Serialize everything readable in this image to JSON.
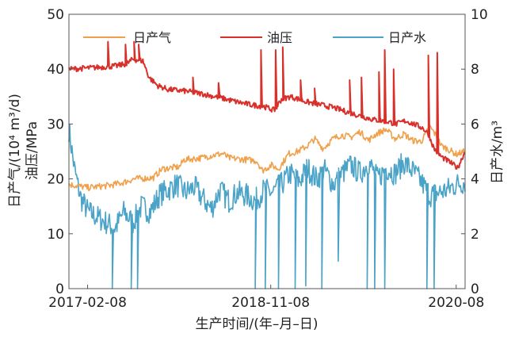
{
  "chart_data": {
    "type": "line",
    "xlabel": "生产时间/(年–月–日)",
    "x_ticks": [
      "2017-02-08",
      "2018-11-08",
      "2020-08"
    ],
    "ylabel_left": "日产气/(10⁴ m³/d)",
    "ylabel_left_line2": "油压/MPa",
    "ylabel_right": "日产水/m³",
    "ylim_left": [
      0,
      50
    ],
    "ylim_right": [
      0,
      10
    ],
    "yticks_left": [
      "0",
      "10",
      "20",
      "30",
      "40",
      "50"
    ],
    "yticks_right": [
      "0",
      "2",
      "4",
      "6",
      "8",
      "10"
    ],
    "xlim": [
      "2016-12-05",
      "2020-09-15"
    ],
    "legend_position": "top",
    "series": [
      {
        "name": "日产气",
        "axis": "left",
        "color": "#F0A04B",
        "points": [
          [
            "2016-12-05",
            19.0
          ],
          [
            "2017-02-08",
            18.4
          ],
          [
            "2017-04-25",
            18.8
          ],
          [
            "2017-06-10",
            19.3
          ],
          [
            "2017-07-20",
            20.0
          ],
          [
            "2017-09-25",
            20.2
          ],
          [
            "2017-10-25",
            21.8
          ],
          [
            "2017-12-25",
            22.2
          ],
          [
            "2018-01-10",
            23.5
          ],
          [
            "2018-03-10",
            23.8
          ],
          [
            "2018-04-10",
            24.2
          ],
          [
            "2018-05-25",
            24.6
          ],
          [
            "2018-06-15",
            23.8
          ],
          [
            "2018-09-20",
            23.3
          ],
          [
            "2018-10-10",
            21.5
          ],
          [
            "2018-11-10",
            22.5
          ],
          [
            "2018-12-05",
            21.8
          ],
          [
            "2019-01-10",
            24.6
          ],
          [
            "2019-02-10",
            25.0
          ],
          [
            "2019-03-15",
            26.0
          ],
          [
            "2019-04-10",
            27.3
          ],
          [
            "2019-05-10",
            25.5
          ],
          [
            "2019-06-10",
            27.2
          ],
          [
            "2019-07-10",
            28.0
          ],
          [
            "2019-08-15",
            27.6
          ],
          [
            "2019-09-15",
            28.6
          ],
          [
            "2019-10-15",
            27.0
          ],
          [
            "2019-11-10",
            28.2
          ],
          [
            "2019-12-15",
            29.0
          ],
          [
            "2020-01-15",
            27.3
          ],
          [
            "2020-02-15",
            28.2
          ],
          [
            "2020-03-15",
            27.0
          ],
          [
            "2020-04-15",
            26.8
          ],
          [
            "2020-05-15",
            29.5
          ],
          [
            "2020-06-05",
            28.0
          ],
          [
            "2020-06-25",
            26.0
          ],
          [
            "2020-07-15",
            25.5
          ],
          [
            "2020-08-15",
            24.5
          ],
          [
            "2020-09-15",
            25.0
          ]
        ]
      },
      {
        "name": "油压",
        "axis": "left",
        "color": "#D8312C",
        "points": [
          [
            "2016-12-05",
            40.0
          ],
          [
            "2017-03-10",
            40.3
          ],
          [
            "2017-05-20",
            40.6
          ],
          [
            "2017-06-25",
            41.0
          ],
          [
            "2017-07-15",
            41.8
          ],
          [
            "2017-08-20",
            41.5
          ],
          [
            "2017-09-10",
            38.5
          ],
          [
            "2017-10-10",
            37.0
          ],
          [
            "2017-11-15",
            36.3
          ],
          [
            "2018-01-15",
            36.0
          ],
          [
            "2018-03-15",
            35.5
          ],
          [
            "2018-05-15",
            34.8
          ],
          [
            "2018-07-15",
            34.0
          ],
          [
            "2018-09-01",
            33.5
          ],
          [
            "2018-10-15",
            33.2
          ],
          [
            "2018-11-20",
            32.5
          ],
          [
            "2018-12-15",
            34.5
          ],
          [
            "2019-01-15",
            35.0
          ],
          [
            "2019-02-15",
            34.5
          ],
          [
            "2019-03-15",
            34.0
          ],
          [
            "2019-05-01",
            33.5
          ],
          [
            "2019-06-15",
            33.0
          ],
          [
            "2019-08-01",
            32.2
          ],
          [
            "2019-09-15",
            31.5
          ],
          [
            "2019-11-01",
            30.8
          ],
          [
            "2019-12-15",
            30.5
          ],
          [
            "2020-01-20",
            30.0
          ],
          [
            "2020-02-20",
            30.6
          ],
          [
            "2020-03-20",
            30.0
          ],
          [
            "2020-04-20",
            29.3
          ],
          [
            "2020-05-10",
            28.2
          ],
          [
            "2020-05-30",
            25.5
          ],
          [
            "2020-06-25",
            24.0
          ],
          [
            "2020-07-25",
            23.0
          ],
          [
            "2020-08-20",
            22.0
          ],
          [
            "2020-09-15",
            25.0
          ]
        ],
        "spikes": [
          [
            "2017-04-20",
            45
          ],
          [
            "2017-06-20",
            44.5
          ],
          [
            "2017-07-20",
            45
          ],
          [
            "2017-08-05",
            44.5
          ],
          [
            "2018-02-10",
            38.5
          ],
          [
            "2018-05-10",
            37.5
          ],
          [
            "2018-10-05",
            43.5
          ],
          [
            "2018-11-25",
            43.5
          ],
          [
            "2018-12-20",
            44.0
          ],
          [
            "2019-02-20",
            38.0
          ],
          [
            "2019-04-10",
            36.5
          ],
          [
            "2019-08-10",
            38.0
          ],
          [
            "2019-09-20",
            38.5
          ],
          [
            "2019-11-20",
            39.5
          ],
          [
            "2019-12-10",
            43.5
          ],
          [
            "2020-01-10",
            40.0
          ],
          [
            "2020-05-10",
            42.5
          ],
          [
            "2020-06-10",
            43.0
          ]
        ]
      },
      {
        "name": "日产水",
        "axis": "right",
        "color": "#4BA3C7",
        "points": [
          [
            "2016-12-05",
            5.8
          ],
          [
            "2016-12-25",
            4.3
          ],
          [
            "2017-01-15",
            3.3
          ],
          [
            "2017-02-10",
            2.8
          ],
          [
            "2017-03-15",
            2.6
          ],
          [
            "2017-04-15",
            2.4
          ],
          [
            "2017-05-15",
            2.2
          ],
          [
            "2017-06-15",
            2.8
          ],
          [
            "2017-07-15",
            2.4
          ],
          [
            "2017-08-15",
            3.0
          ],
          [
            "2017-09-15",
            2.8
          ],
          [
            "2017-10-15",
            3.4
          ],
          [
            "2017-11-15",
            3.6
          ],
          [
            "2017-12-15",
            3.8
          ],
          [
            "2018-01-15",
            3.5
          ],
          [
            "2018-02-15",
            3.7
          ],
          [
            "2018-03-15",
            3.3
          ],
          [
            "2018-04-15",
            2.9
          ],
          [
            "2018-05-15",
            3.6
          ],
          [
            "2018-06-15",
            3.2
          ],
          [
            "2018-07-15",
            3.5
          ],
          [
            "2018-08-15",
            3.4
          ],
          [
            "2018-09-15",
            3.2
          ],
          [
            "2018-10-15",
            3.6
          ],
          [
            "2018-11-15",
            3.5
          ],
          [
            "2018-12-15",
            3.8
          ],
          [
            "2019-01-15",
            4.2
          ],
          [
            "2019-02-15",
            3.9
          ],
          [
            "2019-03-15",
            4.4
          ],
          [
            "2019-04-15",
            4.0
          ],
          [
            "2019-05-15",
            4.3
          ],
          [
            "2019-06-15",
            3.8
          ],
          [
            "2019-07-15",
            4.2
          ],
          [
            "2019-08-15",
            4.5
          ],
          [
            "2019-09-15",
            4.2
          ],
          [
            "2019-10-15",
            4.6
          ],
          [
            "2019-11-15",
            4.0
          ],
          [
            "2019-12-15",
            4.4
          ],
          [
            "2020-01-15",
            4.2
          ],
          [
            "2020-02-15",
            4.6
          ],
          [
            "2020-03-15",
            4.3
          ],
          [
            "2020-04-15",
            3.9
          ],
          [
            "2020-05-15",
            3.4
          ],
          [
            "2020-06-15",
            3.5
          ],
          [
            "2020-07-15",
            3.6
          ],
          [
            "2020-08-15",
            3.8
          ],
          [
            "2020-09-15",
            3.9
          ]
        ],
        "drops": [
          [
            "2017-05-05",
            0
          ],
          [
            "2017-07-10",
            0
          ],
          [
            "2017-08-01",
            0
          ],
          [
            "2018-09-15",
            0
          ],
          [
            "2018-10-20",
            0
          ],
          [
            "2018-12-05",
            0
          ],
          [
            "2019-02-01",
            0
          ],
          [
            "2019-03-10",
            0.1
          ],
          [
            "2019-05-05",
            0
          ],
          [
            "2019-07-01",
            1.0
          ],
          [
            "2019-10-10",
            0
          ],
          [
            "2019-11-05",
            0
          ],
          [
            "2019-12-10",
            0
          ],
          [
            "2020-05-05",
            0
          ],
          [
            "2020-05-30",
            0
          ]
        ]
      }
    ]
  }
}
